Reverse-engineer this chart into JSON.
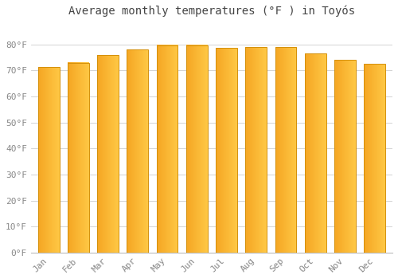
{
  "title": "Average monthly temperatures (°F ) in Toyós",
  "months": [
    "Jan",
    "Feb",
    "Mar",
    "Apr",
    "May",
    "Jun",
    "Jul",
    "Aug",
    "Sep",
    "Oct",
    "Nov",
    "Dec"
  ],
  "values": [
    71.2,
    73.0,
    75.8,
    78.0,
    79.7,
    79.7,
    78.6,
    79.0,
    79.0,
    76.5,
    74.0,
    72.5
  ],
  "bar_color_left": "#F5A623",
  "bar_color_right": "#FFC845",
  "bar_edge_color": "#D4900A",
  "background_color": "#FFFFFF",
  "plot_bg_color": "#FFFFFF",
  "grid_color": "#CCCCCC",
  "tick_color": "#888888",
  "title_color": "#444444",
  "ylim": [
    0,
    88
  ],
  "yticks": [
    0,
    10,
    20,
    30,
    40,
    50,
    60,
    70,
    80
  ],
  "ytick_labels": [
    "0°F",
    "10°F",
    "20°F",
    "30°F",
    "40°F",
    "50°F",
    "60°F",
    "70°F",
    "80°F"
  ],
  "tick_fontsize": 8,
  "title_fontsize": 10,
  "bar_width": 0.72
}
